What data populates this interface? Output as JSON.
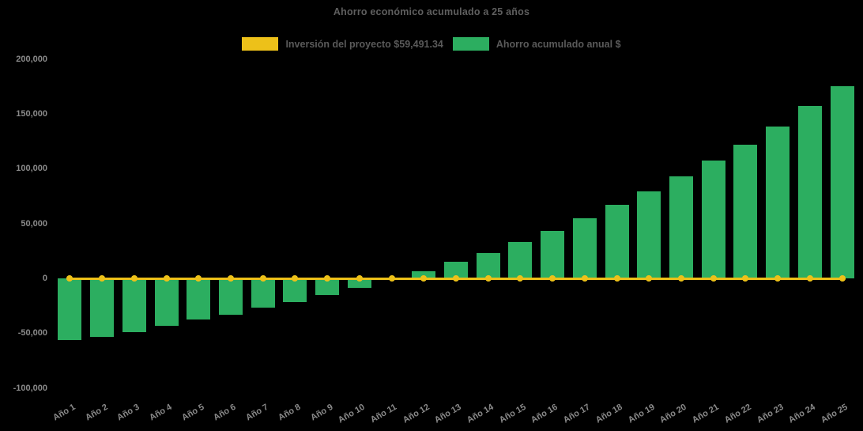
{
  "title": "Ahorro económico acumulado a 25 años",
  "colors": {
    "background": "#000000",
    "investment_yellow": "#edc119",
    "savings_green": "#2cae60",
    "title_text": "#5f5f5f",
    "axis_text": "#8a8a8a"
  },
  "chart_data": {
    "type": "bar",
    "title": "Ahorro económico acumulado a 25 años",
    "categories": [
      "Año 1",
      "Año 2",
      "Año 3",
      "Año 4",
      "Año 5",
      "Año 6",
      "Año 7",
      "Año 8",
      "Año 9",
      "Año 10",
      "Año 11",
      "Año 12",
      "Año 13",
      "Año 14",
      "Año 15",
      "Año 16",
      "Año 17",
      "Año 18",
      "Año 19",
      "Año 20",
      "Año 21",
      "Año 22",
      "Año 23",
      "Año 24",
      "Año 25"
    ],
    "series": [
      {
        "name": "Inversión del proyecto $59,491.34",
        "type": "line",
        "color": "#edc119",
        "values": [
          0,
          0,
          0,
          0,
          0,
          0,
          0,
          0,
          0,
          0,
          0,
          0,
          0,
          0,
          0,
          0,
          0,
          0,
          0,
          0,
          0,
          0,
          0,
          0,
          0
        ]
      },
      {
        "name": "Ahorro acumulado anual $",
        "type": "bar",
        "color": "#2cae60",
        "values": [
          -56000,
          -53600,
          -48900,
          -43200,
          -37800,
          -33500,
          -26800,
          -21500,
          -14900,
          -8300,
          -500,
          6200,
          15100,
          23000,
          33300,
          43300,
          54800,
          67000,
          79700,
          93300,
          107700,
          122200,
          138600,
          157000,
          175500
        ]
      }
    ],
    "ylim": [
      -100000,
      200000
    ],
    "yticks": [
      200000,
      150000,
      100000,
      50000,
      0,
      -50000,
      -100000
    ],
    "ytick_labels": [
      "200,000",
      "150,000",
      "100,000",
      "50,000",
      "0",
      "-50,000",
      "-100,000"
    ],
    "xlabel": "",
    "ylabel": "",
    "grid": false,
    "legend_position": "top-center"
  }
}
